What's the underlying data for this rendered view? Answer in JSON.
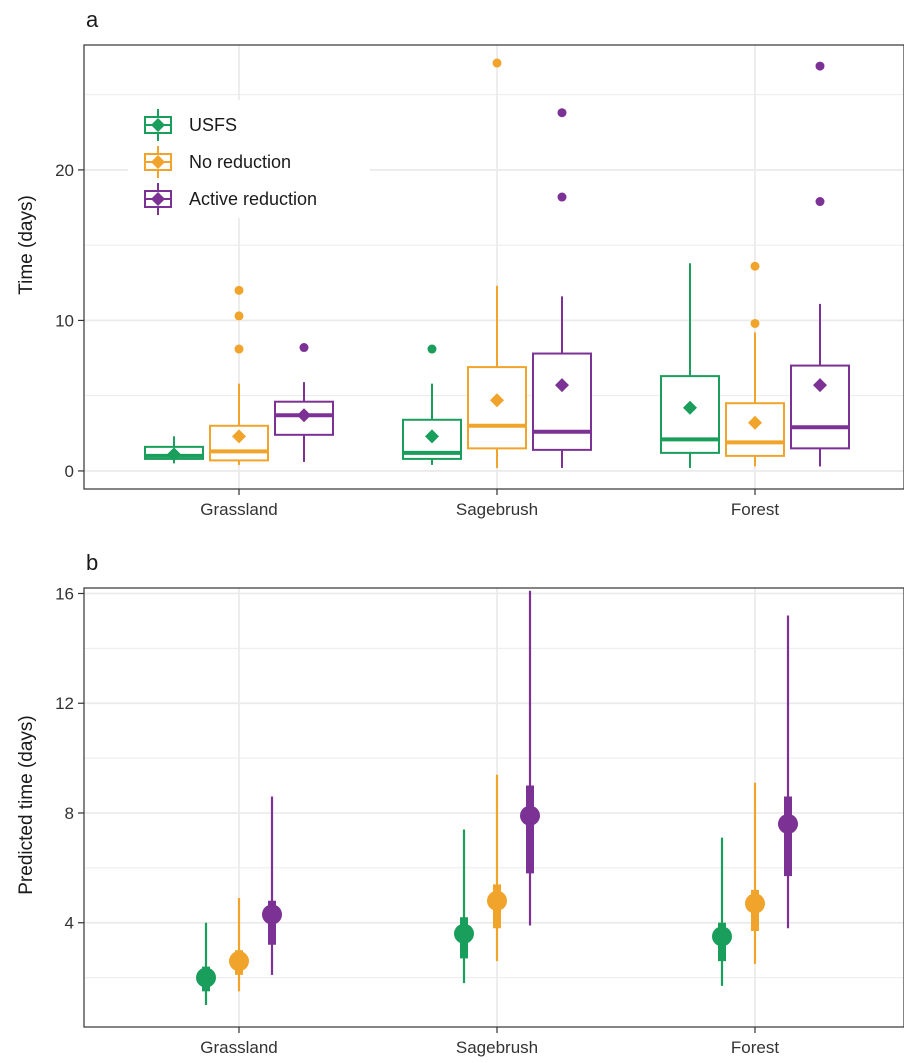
{
  "colors": {
    "USFS": "#1a9e5c",
    "No reduction": "#f0a42b",
    "Active reduction": "#7b3294",
    "grid": "#ebebeb",
    "axis": "#333333"
  },
  "chart_data": [
    {
      "panel": "a",
      "type": "boxplot",
      "categories": [
        "Grassland",
        "Sagebrush",
        "Forest"
      ],
      "ylabel": "Time (days)",
      "xlabel": "",
      "ylim": [
        -1.2,
        28.3
      ],
      "yticks": [
        0,
        10,
        20
      ],
      "grid": true,
      "legend": {
        "placement": "top-left",
        "entries": [
          "USFS",
          "No reduction",
          "Active reduction"
        ]
      },
      "series": [
        {
          "name": "USFS",
          "boxes": [
            {
              "whisker_low": 0.5,
              "q1": 0.8,
              "median": 1.0,
              "q3": 1.6,
              "whisker_high": 2.3,
              "mean": 1.1,
              "outliers": []
            },
            {
              "whisker_low": 0.4,
              "q1": 0.8,
              "median": 1.2,
              "q3": 3.4,
              "whisker_high": 5.8,
              "mean": 2.3,
              "outliers": [
                8.1
              ]
            },
            {
              "whisker_low": 0.2,
              "q1": 1.2,
              "median": 2.1,
              "q3": 6.3,
              "whisker_high": 13.8,
              "mean": 4.2,
              "outliers": []
            }
          ]
        },
        {
          "name": "No reduction",
          "boxes": [
            {
              "whisker_low": 0.4,
              "q1": 0.7,
              "median": 1.3,
              "q3": 3.0,
              "whisker_high": 5.8,
              "mean": 2.3,
              "outliers": [
                8.1,
                10.3,
                12.0
              ]
            },
            {
              "whisker_low": 0.2,
              "q1": 1.5,
              "median": 3.0,
              "q3": 6.9,
              "whisker_high": 12.3,
              "mean": 4.7,
              "outliers": [
                27.1
              ]
            },
            {
              "whisker_low": 0.3,
              "q1": 1.0,
              "median": 1.9,
              "q3": 4.5,
              "whisker_high": 9.2,
              "mean": 3.2,
              "outliers": [
                9.8,
                13.6
              ]
            }
          ]
        },
        {
          "name": "Active reduction",
          "boxes": [
            {
              "whisker_low": 0.6,
              "q1": 2.4,
              "median": 3.7,
              "q3": 4.6,
              "whisker_high": 5.9,
              "mean": 3.7,
              "outliers": [
                8.2
              ]
            },
            {
              "whisker_low": 0.2,
              "q1": 1.4,
              "median": 2.6,
              "q3": 7.8,
              "whisker_high": 11.6,
              "mean": 5.7,
              "outliers": [
                18.2,
                23.8
              ]
            },
            {
              "whisker_low": 0.3,
              "q1": 1.5,
              "median": 2.9,
              "q3": 7.0,
              "whisker_high": 11.1,
              "mean": 5.7,
              "outliers": [
                17.9,
                26.9
              ]
            }
          ]
        }
      ]
    },
    {
      "panel": "b",
      "type": "pointrange",
      "categories": [
        "Grassland",
        "Sagebrush",
        "Forest"
      ],
      "ylabel": "Predicted time (days)",
      "xlabel": "",
      "ylim": [
        0.2,
        16.2
      ],
      "yticks": [
        4,
        8,
        12,
        16
      ],
      "grid": true,
      "series": [
        {
          "name": "USFS",
          "points": [
            {
              "estimate": 2.0,
              "inner": [
                1.5,
                2.4
              ],
              "outer": [
                1.0,
                4.0
              ]
            },
            {
              "estimate": 3.6,
              "inner": [
                2.7,
                4.2
              ],
              "outer": [
                1.8,
                7.4
              ]
            },
            {
              "estimate": 3.5,
              "inner": [
                2.6,
                4.0
              ],
              "outer": [
                1.7,
                7.1
              ]
            }
          ]
        },
        {
          "name": "No reduction",
          "points": [
            {
              "estimate": 2.6,
              "inner": [
                2.1,
                3.0
              ],
              "outer": [
                1.5,
                4.9
              ]
            },
            {
              "estimate": 4.8,
              "inner": [
                3.8,
                5.4
              ],
              "outer": [
                2.6,
                9.4
              ]
            },
            {
              "estimate": 4.7,
              "inner": [
                3.7,
                5.2
              ],
              "outer": [
                2.5,
                9.1
              ]
            }
          ]
        },
        {
          "name": "Active reduction",
          "points": [
            {
              "estimate": 4.3,
              "inner": [
                3.2,
                4.8
              ],
              "outer": [
                2.1,
                8.6
              ]
            },
            {
              "estimate": 7.9,
              "inner": [
                5.8,
                9.0
              ],
              "outer": [
                3.9,
                16.1
              ]
            },
            {
              "estimate": 7.6,
              "inner": [
                5.7,
                8.6
              ],
              "outer": [
                3.8,
                15.2
              ]
            }
          ]
        }
      ]
    }
  ]
}
